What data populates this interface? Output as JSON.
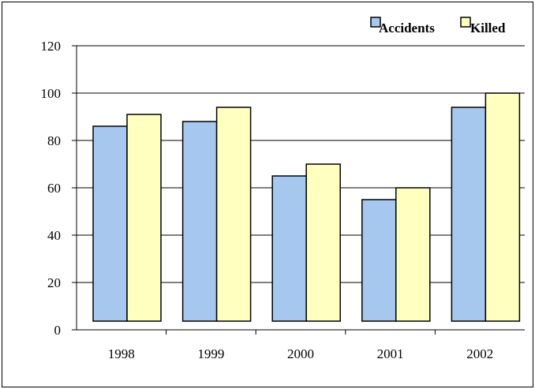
{
  "chart_data": {
    "type": "bar",
    "categories": [
      "1998",
      "1999",
      "2000",
      "2001",
      "2002"
    ],
    "series": [
      {
        "name": "Accidents",
        "values": [
          86,
          88,
          65,
          55,
          94
        ],
        "color": "#A6C8EE"
      },
      {
        "name": "Killed",
        "values": [
          91,
          94,
          70,
          60,
          100
        ],
        "color": "#FFFFC0"
      }
    ],
    "title": "",
    "xlabel": "",
    "ylabel": "",
    "ylim": [
      0,
      120
    ],
    "yticks": [
      "0",
      "20",
      "40",
      "60",
      "80",
      "100",
      "120"
    ],
    "grid": true,
    "legend_position": "top-right"
  }
}
